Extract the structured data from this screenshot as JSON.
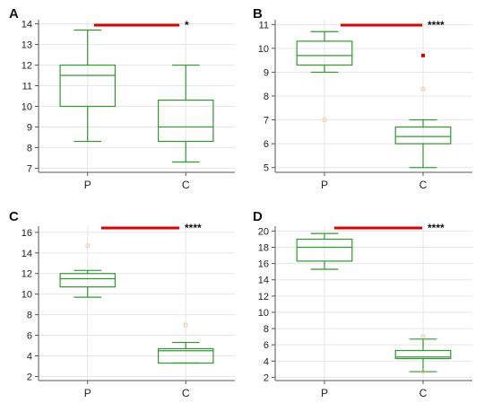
{
  "colors": {
    "box": "#2e9a2e",
    "significance_bar": "#e00000",
    "outlier_far": "#e00000",
    "outlier_near": "#f2c79a",
    "grid": "#e6e6e6",
    "axis": "#555555"
  },
  "chart_data": [
    {
      "type": "box",
      "panel": "A",
      "categories": [
        "P",
        "C"
      ],
      "ylim": [
        6.8,
        14.2
      ],
      "yticks": [
        7,
        8,
        9,
        10,
        11,
        12,
        13,
        14
      ],
      "boxes": [
        {
          "name": "P",
          "whisker_low": 8.3,
          "q1": 10.0,
          "median": 11.5,
          "q3": 12.0,
          "whisker_high": 13.7
        },
        {
          "name": "C",
          "whisker_low": 7.3,
          "q1": 8.3,
          "median": 9.0,
          "q3": 10.3,
          "whisker_high": 12.0
        }
      ],
      "outliers": [],
      "significance": "*"
    },
    {
      "type": "box",
      "panel": "B",
      "categories": [
        "P",
        "C"
      ],
      "ylim": [
        4.8,
        11.2
      ],
      "yticks": [
        5,
        6,
        7,
        8,
        9,
        10,
        11
      ],
      "boxes": [
        {
          "name": "P",
          "whisker_low": 9.0,
          "q1": 9.3,
          "median": 9.7,
          "q3": 10.3,
          "whisker_high": 10.7
        },
        {
          "name": "C",
          "whisker_low": 5.0,
          "q1": 6.0,
          "median": 6.3,
          "q3": 6.7,
          "whisker_high": 7.0
        }
      ],
      "outliers": [
        {
          "category": "P",
          "value": 7.0,
          "kind": "near"
        },
        {
          "category": "C",
          "value": 8.3,
          "kind": "near"
        },
        {
          "category": "C",
          "value": 9.7,
          "kind": "far"
        }
      ],
      "significance": "****"
    },
    {
      "type": "box",
      "panel": "C",
      "categories": [
        "P",
        "C"
      ],
      "ylim": [
        1.6,
        16.6
      ],
      "yticks": [
        2,
        4,
        6,
        8,
        10,
        12,
        14,
        16
      ],
      "boxes": [
        {
          "name": "P",
          "whisker_low": 9.7,
          "q1": 10.7,
          "median": 11.5,
          "q3": 12.0,
          "whisker_high": 12.3
        },
        {
          "name": "C",
          "whisker_low": 3.3,
          "q1": 3.3,
          "median": 4.5,
          "q3": 4.7,
          "whisker_high": 5.3
        }
      ],
      "outliers": [
        {
          "category": "P",
          "value": 14.7,
          "kind": "near"
        },
        {
          "category": "C",
          "value": 7.0,
          "kind": "near"
        }
      ],
      "significance": "****"
    },
    {
      "type": "box",
      "panel": "D",
      "categories": [
        "P",
        "C"
      ],
      "ylim": [
        1.6,
        20.6
      ],
      "yticks": [
        2,
        4,
        6,
        8,
        10,
        12,
        14,
        16,
        18,
        20
      ],
      "boxes": [
        {
          "name": "P",
          "whisker_low": 15.3,
          "q1": 16.3,
          "median": 18.0,
          "q3": 19.0,
          "whisker_high": 19.7
        },
        {
          "name": "C",
          "whisker_low": 2.7,
          "q1": 4.3,
          "median": 4.5,
          "q3": 5.3,
          "whisker_high": 6.7
        }
      ],
      "outliers": [
        {
          "category": "C",
          "value": 7.0,
          "kind": "near"
        },
        {
          "category": "C",
          "value": 2.7,
          "kind": "near"
        }
      ],
      "significance": "****"
    }
  ]
}
